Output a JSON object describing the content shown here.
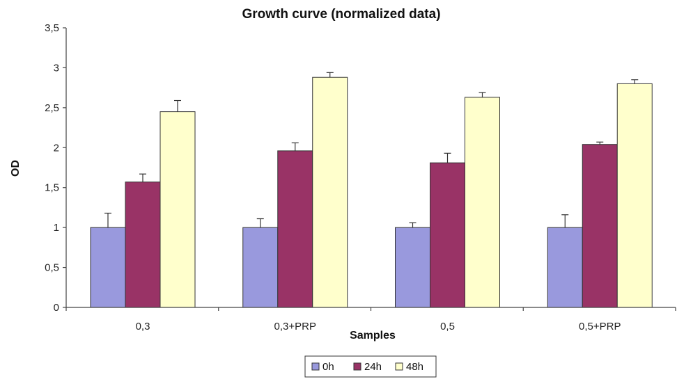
{
  "chart_data": {
    "type": "bar",
    "title": "Growth curve (normalized data)",
    "xlabel": "Samples",
    "ylabel": "OD",
    "ylim": [
      0,
      3.5
    ],
    "yticks": [
      "0",
      "0,5",
      "1",
      "1,5",
      "2",
      "2,5",
      "3",
      "3,5"
    ],
    "categories": [
      "0,3",
      "0,3+PRP",
      "0,5",
      "0,5+PRP"
    ],
    "series": [
      {
        "name": "0h",
        "color": "#9999dd",
        "values": [
          1.0,
          1.0,
          1.0,
          1.0
        ],
        "errors": [
          0.18,
          0.11,
          0.06,
          0.16
        ]
      },
      {
        "name": "24h",
        "color": "#993366",
        "values": [
          1.57,
          1.96,
          1.81,
          2.04
        ],
        "errors": [
          0.1,
          0.1,
          0.12,
          0.03
        ]
      },
      {
        "name": "48h",
        "color": "#ffffcc",
        "values": [
          2.45,
          2.88,
          2.63,
          2.8
        ],
        "errors": [
          0.14,
          0.06,
          0.06,
          0.05
        ]
      }
    ],
    "grid": false,
    "legend_position": "bottom"
  }
}
